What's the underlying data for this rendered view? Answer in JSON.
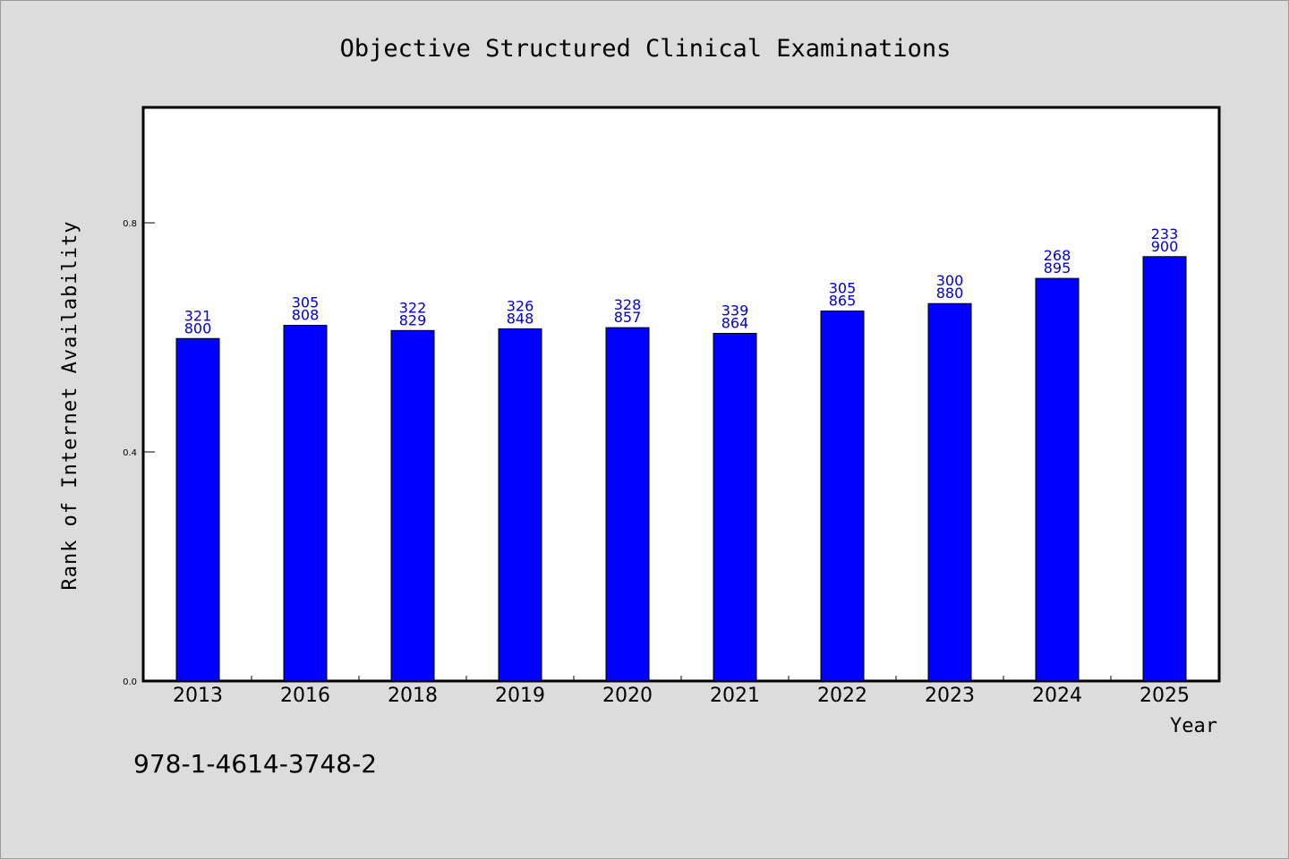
{
  "chart_data": {
    "type": "bar",
    "title": "Objective Structured Clinical Examinations",
    "xlabel": "Year",
    "ylabel": "Rank of Internet Availability",
    "categories": [
      "2013",
      "2016",
      "2018",
      "2019",
      "2020",
      "2021",
      "2022",
      "2023",
      "2024",
      "2025"
    ],
    "values": [
      0.598,
      0.621,
      0.612,
      0.615,
      0.617,
      0.607,
      0.646,
      0.659,
      0.703,
      0.741
    ],
    "value_labels": [
      [
        "321",
        "800"
      ],
      [
        "305",
        "808"
      ],
      [
        "322",
        "829"
      ],
      [
        "326",
        "848"
      ],
      [
        "328",
        "857"
      ],
      [
        "339",
        "864"
      ],
      [
        "305",
        "865"
      ],
      [
        "300",
        "880"
      ],
      [
        "268",
        "895"
      ],
      [
        "233",
        "900"
      ]
    ],
    "yticks": [
      "0.0",
      "0.4",
      "0.8"
    ],
    "ytick_values": [
      0.0,
      0.4,
      0.8
    ],
    "ylim": [
      0,
      1.0
    ],
    "grid": false,
    "bar_color": "#0000ff",
    "label_color": "#0000cc"
  },
  "footer": {
    "isbn": "978-1-4614-3748-2"
  }
}
